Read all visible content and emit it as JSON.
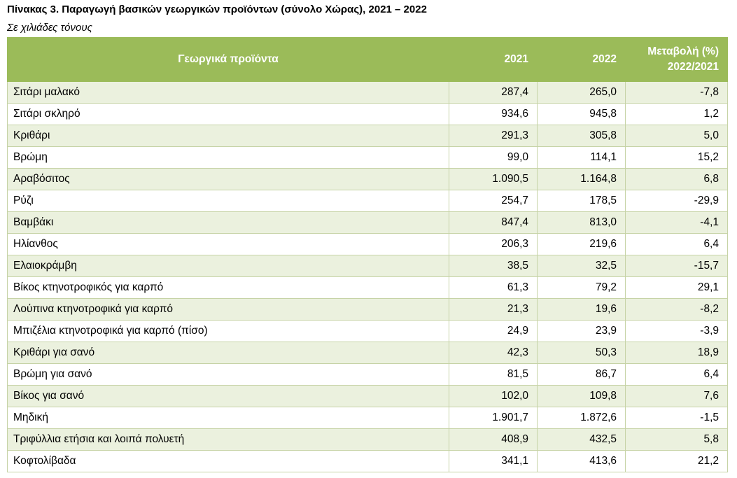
{
  "header": {
    "title": "Πίνακας 3. Παραγωγή βασικών γεωργικών προϊόντων (σύνολο Χώρας), 2021 – 2022",
    "subtitle": "Σε χιλιάδες τόνους"
  },
  "table": {
    "columns": [
      "Γεωργικά προϊόντα",
      "2021",
      "2022",
      [
        "Μεταβολή (%)",
        "2022/2021"
      ]
    ],
    "rows": [
      [
        "Σιτάρι μαλακό",
        "287,4",
        "265,0",
        "-7,8"
      ],
      [
        "Σιτάρι σκληρό",
        "934,6",
        "945,8",
        "1,2"
      ],
      [
        "Κριθάρι",
        "291,3",
        "305,8",
        "5,0"
      ],
      [
        "Βρώμη",
        "99,0",
        "114,1",
        "15,2"
      ],
      [
        "Αραβόσιτος",
        "1.090,5",
        "1.164,8",
        "6,8"
      ],
      [
        "Ρύζι",
        "254,7",
        "178,5",
        "-29,9"
      ],
      [
        "Βαμβάκι",
        "847,4",
        "813,0",
        "-4,1"
      ],
      [
        "Ηλίανθος",
        "206,3",
        "219,6",
        "6,4"
      ],
      [
        "Ελαιοκράμβη",
        "38,5",
        "32,5",
        "-15,7"
      ],
      [
        "Βίκος κτηνοτροφικός για καρπό",
        "61,3",
        "79,2",
        "29,1"
      ],
      [
        "Λούπινα κτηνοτροφικά για καρπό",
        "21,3",
        "19,6",
        "-8,2"
      ],
      [
        "Μπιζέλια κτηνοτροφικά για καρπό (πίσο)",
        "24,9",
        "23,9",
        "-3,9"
      ],
      [
        "Κριθάρι για σανό",
        "42,3",
        "50,3",
        "18,9"
      ],
      [
        "Βρώμη για σανό",
        "81,5",
        "86,7",
        "6,4"
      ],
      [
        "Βίκος για σανό",
        "102,0",
        "109,8",
        "7,6"
      ],
      [
        "Μηδική",
        "1.901,7",
        "1.872,6",
        "-1,5"
      ],
      [
        "Τριφύλλια ετήσια και λοιπά πολυετή",
        "408,9",
        "432,5",
        "5,8"
      ],
      [
        "Κοφτολίβαδα",
        "341,1",
        "413,6",
        "21,2"
      ]
    ]
  }
}
